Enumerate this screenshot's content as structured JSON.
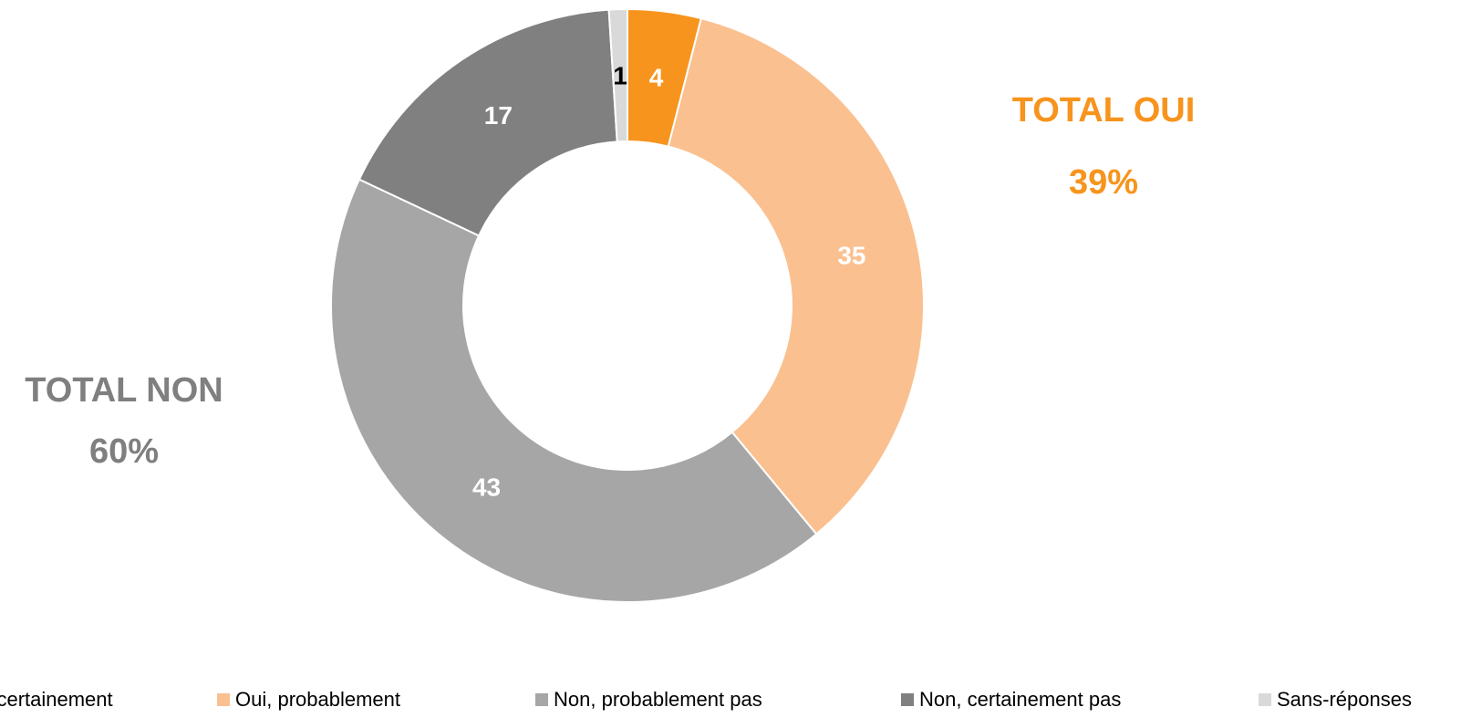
{
  "chart_data": {
    "type": "donut",
    "categories": [
      "Oui, certainement",
      "Oui, probablement",
      "Non, probablement pas",
      "Non, certainement pas",
      "Sans-réponses"
    ],
    "values": [
      4,
      35,
      43,
      17,
      1
    ],
    "colors": [
      "#f7941d",
      "#fac090",
      "#a6a6a6",
      "#808080",
      "#d9d9d9"
    ],
    "label_colors": [
      "#ffffff",
      "#ffffff",
      "#ffffff",
      "#ffffff",
      "#000000"
    ],
    "legend": "bottom",
    "annotations": [
      {
        "title": "TOTAL OUI",
        "value": "39%",
        "color": "#f7941d"
      },
      {
        "title": "TOTAL NON",
        "value": "60%",
        "color": "#7f7f7f"
      }
    ]
  }
}
